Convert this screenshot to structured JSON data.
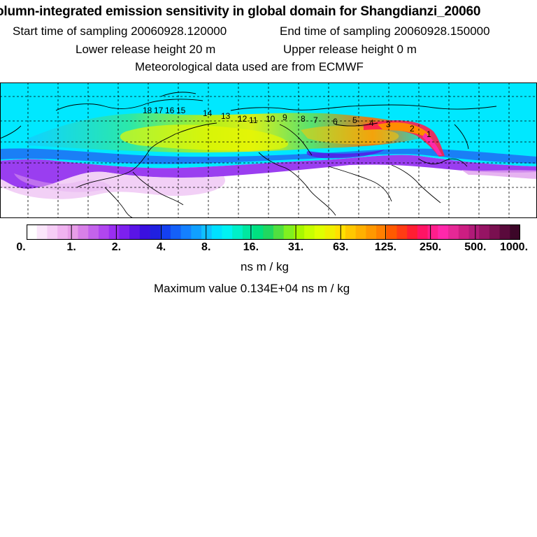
{
  "header": {
    "title": "olumn-integrated emission sensitivity in global domain for Shangdianzi_20060",
    "start_time": "Start time of sampling 20060928.120000",
    "end_time": "End time of sampling 20060928.150000",
    "lower_height": "Lower release height   20 m",
    "upper_height": "Upper release height    0 m",
    "met_data": "Meteorological data used are from ECMWF"
  },
  "map": {
    "trajectory_labels": [
      "18",
      "17",
      "16",
      "15",
      "14",
      "13",
      "12",
      "11",
      "10",
      "9",
      "8",
      "7",
      "6",
      "5",
      "4",
      "3",
      "2",
      "1"
    ]
  },
  "colorbar": {
    "ticks": [
      "0.",
      "1.",
      "2.",
      "4.",
      "8.",
      "16.",
      "31.",
      "63.",
      "125.",
      "250.",
      "500.",
      "1000."
    ],
    "colors": [
      "#ffffff",
      "#fbe6fb",
      "#f6cdf6",
      "#f0b3f0",
      "#e89ee8",
      "#d880e8",
      "#c463ec",
      "#b146f0",
      "#9a2ef2",
      "#7d20ee",
      "#5a14e6",
      "#3a10e0",
      "#2020e0",
      "#1440f0",
      "#1460f8",
      "#1480ff",
      "#10a0ff",
      "#10c0ff",
      "#00e0ff",
      "#00f2f2",
      "#00f0c8",
      "#00e8a0",
      "#00e080",
      "#20d860",
      "#50e040",
      "#80f020",
      "#a8f800",
      "#c8ff00",
      "#e0ff00",
      "#f0f000",
      "#ffe000",
      "#ffc800",
      "#ffb000",
      "#ff9800",
      "#ff8000",
      "#ff5a00",
      "#ff3c14",
      "#ff1e32",
      "#ff1464",
      "#ff1e8c",
      "#ff28aa",
      "#e62896",
      "#cc1e82",
      "#b01a78",
      "#961464",
      "#7a1050",
      "#5a0a3c",
      "#3c0628"
    ],
    "unit": "ns m / kg"
  },
  "max_value": "Maximum value  0.134E+04 ns m / kg"
}
